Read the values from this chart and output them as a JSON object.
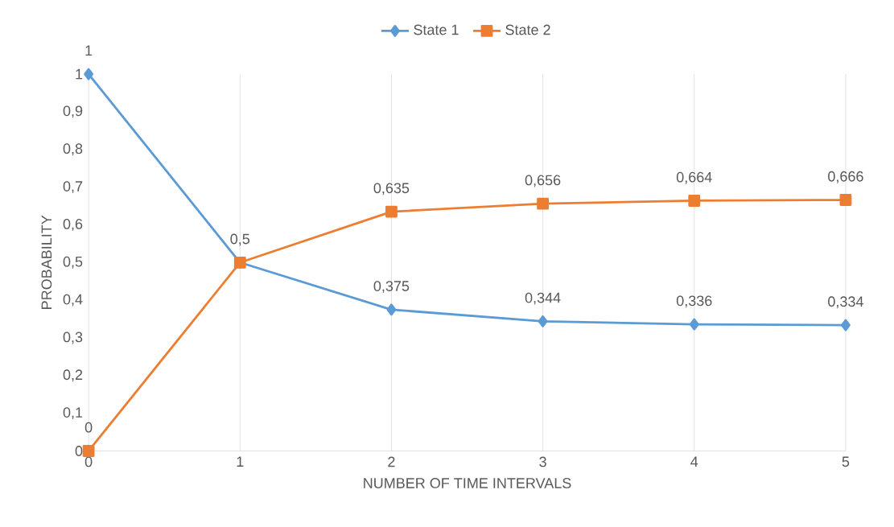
{
  "chart_data": {
    "type": "line",
    "xlabel": "NUMBER OF TIME INTERVALS",
    "ylabel": "PROBABILITY",
    "x": [
      0,
      1,
      2,
      3,
      4,
      5
    ],
    "xlim": [
      0,
      5
    ],
    "xticks": [
      0,
      1,
      2,
      3,
      4,
      5
    ],
    "ylim": [
      0,
      1
    ],
    "yticks": [
      0,
      {
        "value": 0.1,
        "label": "0,1"
      },
      {
        "value": 0.2,
        "label": "0,2"
      },
      {
        "value": 0.3,
        "label": "0,3"
      },
      {
        "value": 0.4,
        "label": "0,4"
      },
      {
        "value": 0.5,
        "label": "0,5"
      },
      {
        "value": 0.6,
        "label": "0,6"
      },
      {
        "value": 0.7,
        "label": "0,7"
      },
      {
        "value": 0.8,
        "label": "0,8"
      },
      {
        "value": 0.9,
        "label": "0,9"
      },
      1
    ],
    "grid": "x",
    "legend": "top",
    "series": [
      {
        "name": "State 1",
        "color": "#5b9bd5",
        "marker": "diamond",
        "values": [
          1,
          0.5,
          0.375,
          0.344,
          0.336,
          0.334
        ],
        "value_labels": [
          "1",
          "0,5",
          "0,375",
          "0,344",
          "0,336",
          "0,334"
        ]
      },
      {
        "name": "State 2",
        "color": "#ed7d31",
        "marker": "square",
        "values": [
          0,
          0.5,
          0.635,
          0.656,
          0.664,
          0.666
        ],
        "value_labels": [
          "0",
          null,
          "0,635",
          "0,656",
          "0,664",
          "0,666"
        ]
      }
    ]
  }
}
